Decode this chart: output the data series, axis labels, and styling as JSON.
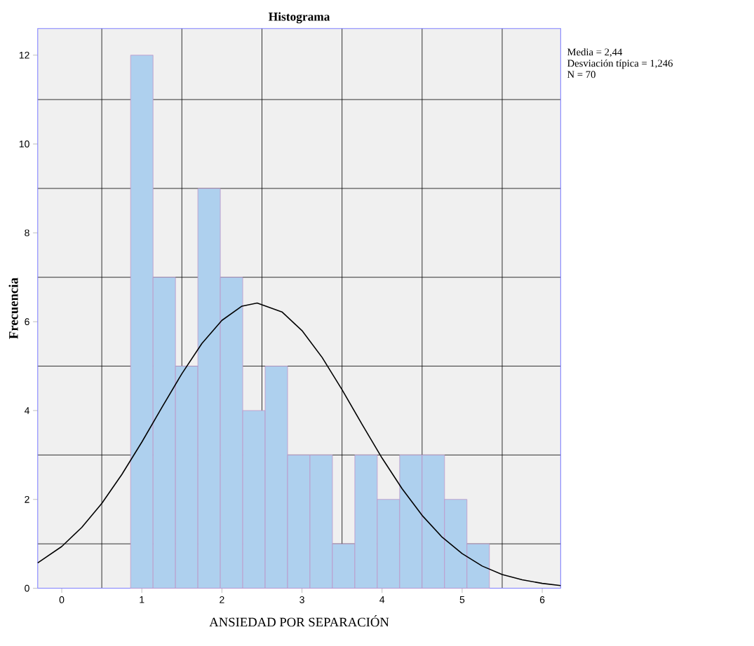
{
  "chart_data": {
    "type": "histogram",
    "title": "Histograma",
    "xlabel": "ANSIEDAD POR SEPARACIÓN",
    "ylabel": "Frecuencia",
    "bins": [
      0.86,
      1.14,
      1.42,
      1.7,
      1.98,
      2.26,
      2.54,
      2.82,
      3.1,
      3.38,
      3.66,
      3.94,
      4.22,
      4.5,
      4.78,
      5.06,
      5.34
    ],
    "values": [
      12,
      7,
      5,
      9,
      7,
      4,
      5,
      3,
      3,
      1,
      3,
      2,
      3,
      3,
      2,
      1
    ],
    "color": "#aed0ee",
    "series": [
      {
        "type": "line",
        "color": "#000000",
        "x": [
          -0.3,
          0,
          0.25,
          0.5,
          0.75,
          1,
          1.25,
          1.5,
          1.75,
          2,
          2.25,
          2.44,
          2.75,
          3,
          3.25,
          3.5,
          3.75,
          4,
          4.25,
          4.5,
          4.75,
          5,
          5.25,
          5.5,
          5.75,
          6,
          6.23
        ],
        "values": [
          0.57,
          0.94,
          1.37,
          1.91,
          2.56,
          3.29,
          4.07,
          4.83,
          5.51,
          6.03,
          6.35,
          6.42,
          6.22,
          5.8,
          5.2,
          4.47,
          3.69,
          2.93,
          2.24,
          1.64,
          1.15,
          0.78,
          0.5,
          0.31,
          0.19,
          0.11,
          0.06
        ]
      }
    ],
    "xlim": [
      -0.3,
      6.23
    ],
    "ylim": [
      0,
      12.6
    ],
    "xticks": [
      0,
      1,
      2,
      3,
      4,
      5,
      6
    ],
    "yticks": [
      0,
      2,
      4,
      6,
      8,
      10,
      12
    ],
    "grid": true,
    "annotations": [
      "Media = 2,44",
      "Desviación típica = 1,246",
      "N = 70"
    ]
  }
}
